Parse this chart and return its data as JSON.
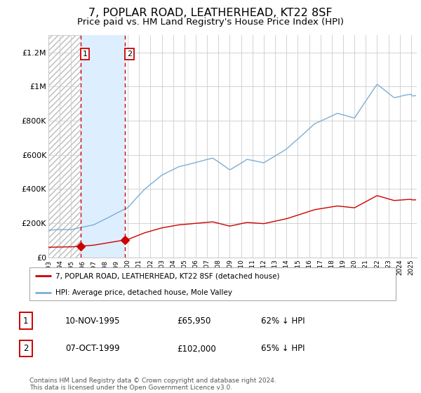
{
  "title": "7, POPLAR ROAD, LEATHERHEAD, KT22 8SF",
  "subtitle": "Price paid vs. HM Land Registry's House Price Index (HPI)",
  "title_fontsize": 11.5,
  "subtitle_fontsize": 9.5,
  "ylabel_ticks": [
    "£0",
    "£200K",
    "£400K",
    "£600K",
    "£800K",
    "£1M",
    "£1.2M"
  ],
  "ytick_values": [
    0,
    200000,
    400000,
    600000,
    800000,
    1000000,
    1200000
  ],
  "ylim": [
    0,
    1300000
  ],
  "xlim_start": 1993.0,
  "xlim_end": 2025.5,
  "x_tick_years": [
    1993,
    1994,
    1995,
    1996,
    1997,
    1998,
    1999,
    2000,
    2001,
    2002,
    2003,
    2004,
    2005,
    2006,
    2007,
    2008,
    2009,
    2010,
    2011,
    2012,
    2013,
    2014,
    2015,
    2016,
    2017,
    2018,
    2019,
    2020,
    2021,
    2022,
    2023,
    2024,
    2025
  ],
  "sale1_x": 1995.86,
  "sale1_y": 65950,
  "sale2_x": 1999.77,
  "sale2_y": 102000,
  "sale1_date": "10-NOV-1995",
  "sale1_price": "£65,950",
  "sale1_hpi": "62% ↓ HPI",
  "sale2_date": "07-OCT-1999",
  "sale2_price": "£102,000",
  "sale2_hpi": "65% ↓ HPI",
  "legend_property": "7, POPLAR ROAD, LEATHERHEAD, KT22 8SF (detached house)",
  "legend_hpi": "HPI: Average price, detached house, Mole Valley",
  "footer": "Contains HM Land Registry data © Crown copyright and database right 2024.\nThis data is licensed under the Open Government Licence v3.0.",
  "property_color": "#cc0000",
  "hpi_color": "#7bafd4",
  "shade_color": "#ddeeff",
  "num_points": 390
}
